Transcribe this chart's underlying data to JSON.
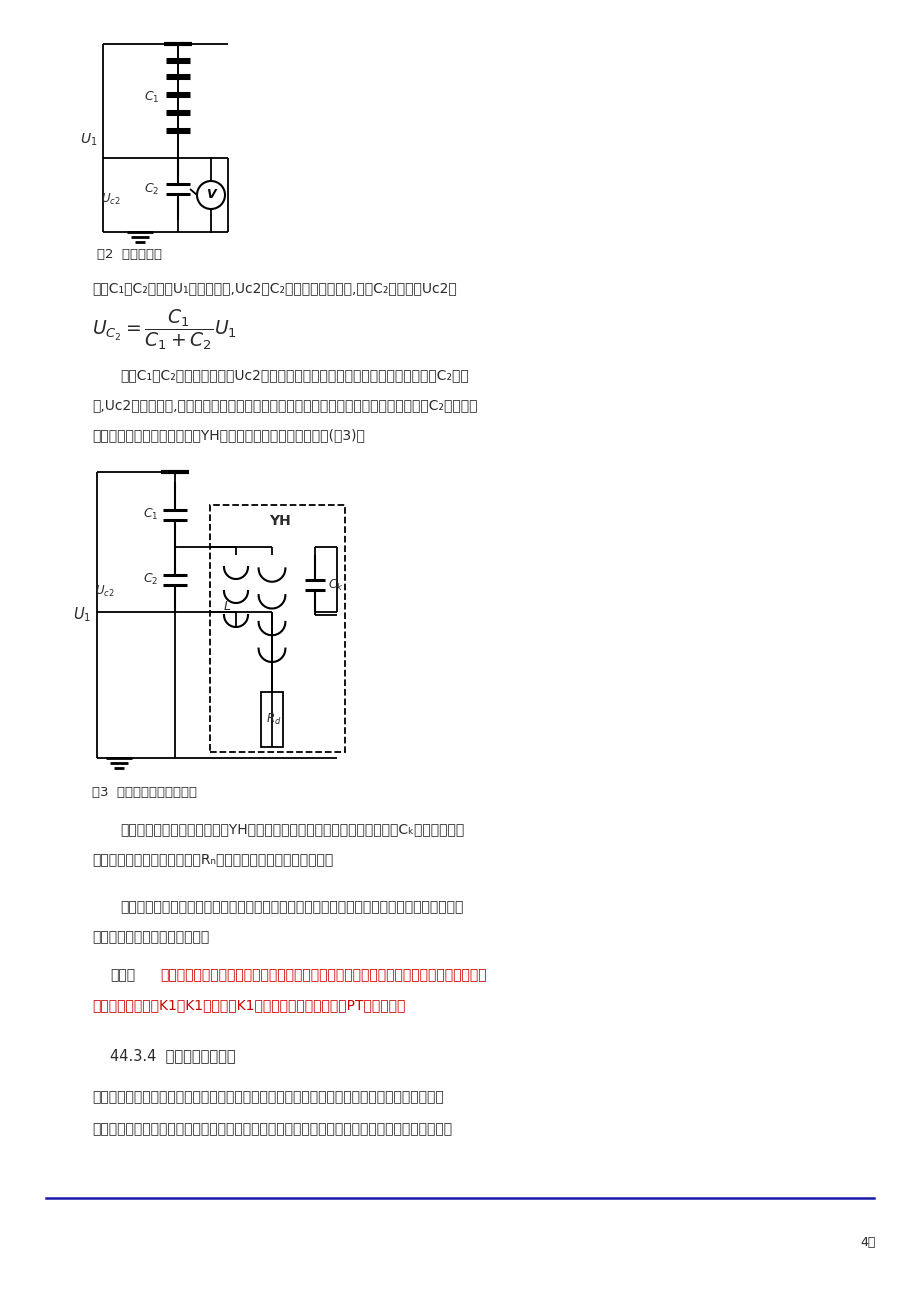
{
  "bg_color": "#ffffff",
  "text_color": "#2a2a2a",
  "red_color": "#cc0000",
  "blue_line_color": "#1a1aaa",
  "fig2_caption": "图2  电容分压器",
  "fig3_caption": "图3  电容分压式电压互感器",
  "para1": "电容C₁和C₂串联，U₁为原边电压,Uc2为C₂上的电压。空载时,电容C₂上的电压Uc2为",
  "p2_line1": "由于C₁和C₂均为常数，因此Uc2正比于原边电压。但实际上，当负载并联于电容C₂两端",
  "p2_line2": "时,Uc2将大大减小,以致误差增大而无法作电压互感器使用。为了克服这个缺点，在电容C₂两端并联",
  "p2_line3": "一带电抗的电磁式电压互感器YH，组成电容分压式电压互感器(图3)。",
  "p3_line1": "电抗可补偿电容器的内阻抗。YH有两个副绕组，第一副绕组可接补偿电容Cₖ供测量仪表使",
  "p3_line2": "用；第二副绕组可接阻尼电阻Rₙ，用以防止谐振引起的过电压。",
  "p4_line1": "电容式电压互感器多与电力系统载波通信的耦合电容器合用，以简化系统，降低造价。此时，",
  "p4_line2": "它还需满足通信运行上的要求。",
  "p5_prefix": "注意：",
  "p5_red1": "电压互感器二次回路不能短路，否则会引起烧坏线圈，为了防止二次端的短路引起主电路",
  "p5_red2": "干扰，加空气开关K1。K1是常闭，K1跳闸时，保护装置将显示PT断线报警。",
  "section": "44.3.4  电压互感器的接线",
  "p6_line1": "电压互感器在电力系统中要测量的电压有线电压、相电压、相对地电压和单相接地时出现的零序",
  "p6_line2": "电压。为了测取这些电压，电压互感器就有了不同的接线方式，最常见的有以下几种，如图所示：",
  "page_num": "4页"
}
